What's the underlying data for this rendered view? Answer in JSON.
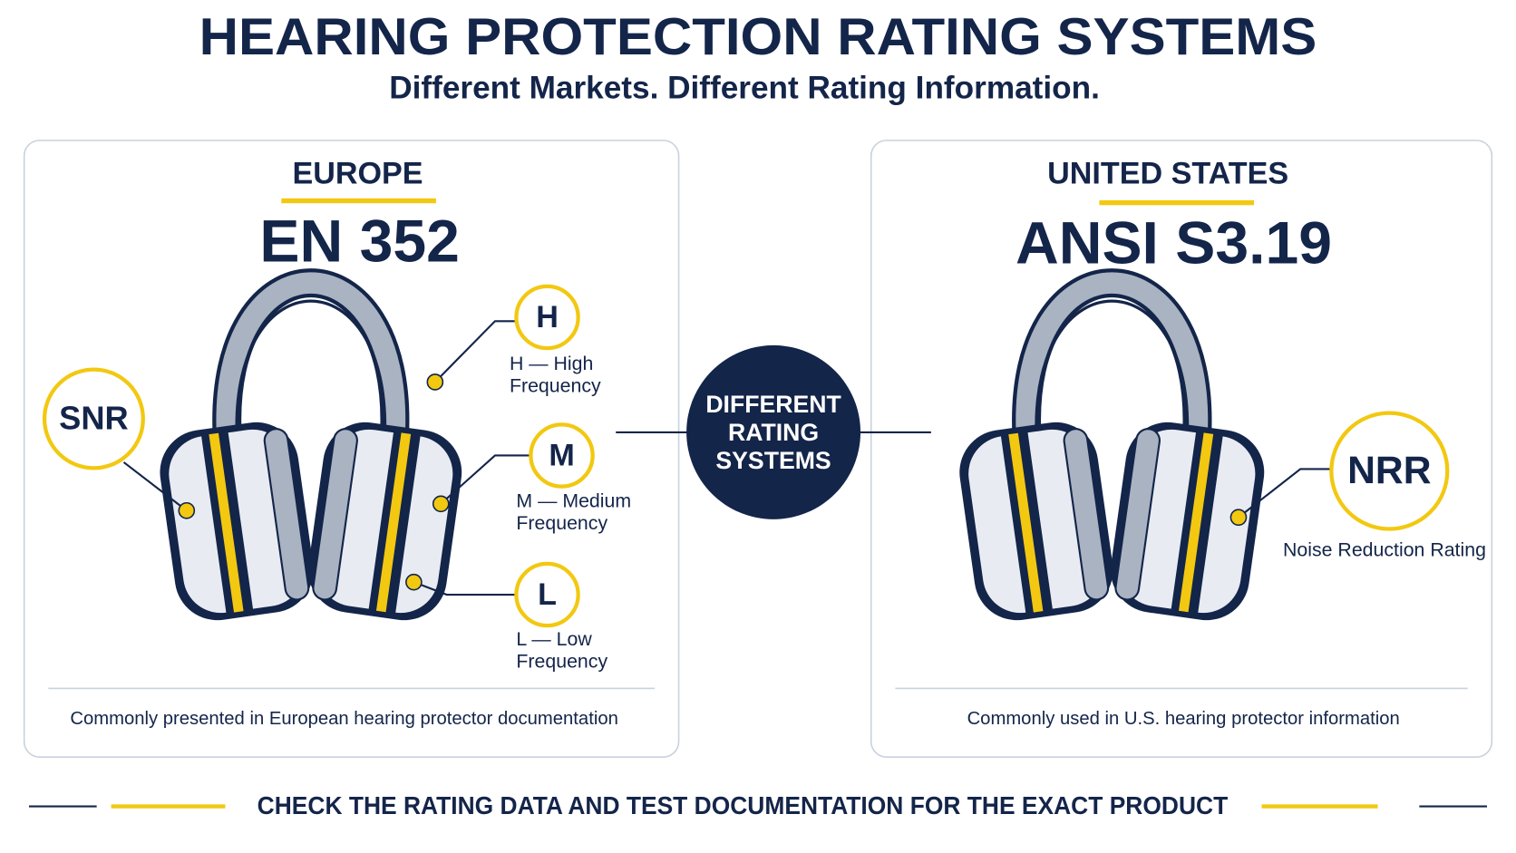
{
  "header": {
    "title": "HEARING PROTECTION RATING SYSTEMS",
    "subtitle": "Different Markets. Different Rating Information."
  },
  "panels": [
    {
      "region": "EUROPE",
      "standard": "EN 352",
      "rating": "SNR",
      "bands": [
        {
          "letter": "H",
          "label": [
            "H — High",
            "Frequency"
          ]
        },
        {
          "letter": "M",
          "label": [
            "M — Medium",
            "Frequency"
          ]
        },
        {
          "letter": "L",
          "label": [
            "L — Low",
            "Frequency"
          ]
        }
      ],
      "note": "Commonly presented in European hearing protector documentation"
    },
    {
      "region": "UNITED STATES",
      "standard": "ANSI S3.19",
      "rating": "NRR",
      "rating_label": "Noise Reduction Rating",
      "note": "Commonly used in U.S. hearing protector information"
    }
  ],
  "center": {
    "label": [
      "DIFFERENT",
      "RATING",
      "SYSTEMS"
    ]
  },
  "footer": "CHECK THE RATING DATA AND TEST DOCUMENTATION FOR THE EXACT PRODUCT"
}
